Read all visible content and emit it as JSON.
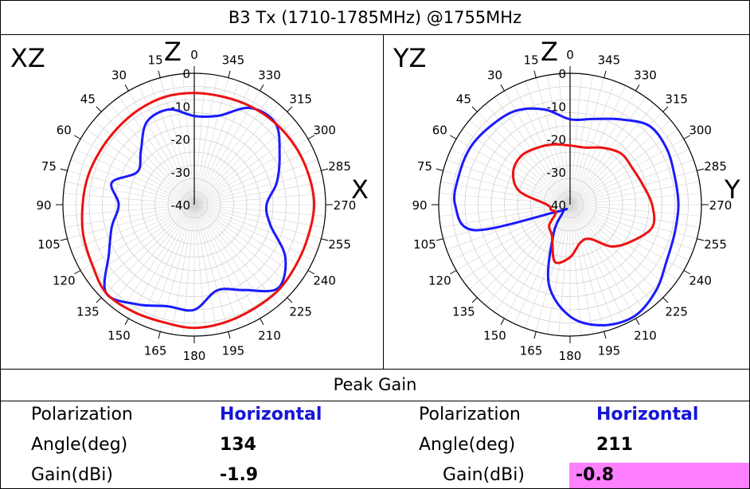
{
  "title": "B3 Tx (1710-1785MHz) @1755MHz",
  "peak_title": "Peak Gain",
  "chart_data": [
    {
      "type": "polar",
      "plane_label": "XZ",
      "top_axis": "Z",
      "side_axis": "X",
      "angle_labels": [
        "0",
        "15",
        "30",
        "45",
        "60",
        "75",
        "90",
        "105",
        "120",
        "135",
        "150",
        "165",
        "180",
        "195",
        "210",
        "225",
        "240",
        "255",
        "270",
        "285",
        "300",
        "315",
        "330",
        "345"
      ],
      "radial_labels": [
        "0",
        "-10",
        "-20",
        "-30",
        "-40"
      ],
      "rlim": [
        -40,
        0
      ],
      "series": [
        {
          "name": "Horizontal",
          "color": "#1a1aff",
          "angle": [
            0,
            15,
            30,
            45,
            60,
            75,
            90,
            105,
            120,
            135,
            150,
            165,
            180,
            195,
            210,
            225,
            240,
            255,
            270,
            285,
            300,
            315,
            330,
            345,
            360
          ],
          "gain": [
            -13,
            -10,
            -11,
            -17,
            -20,
            -14,
            -17,
            -14,
            -10,
            -2,
            -5,
            -8,
            -8,
            -13,
            -10,
            -4,
            -8,
            -16,
            -18,
            -14,
            -10,
            -5,
            -6,
            -12,
            -13
          ]
        },
        {
          "name": "",
          "color": "#ee1111",
          "angle": [
            0,
            15,
            30,
            45,
            60,
            75,
            90,
            105,
            120,
            135,
            150,
            165,
            180,
            195,
            210,
            225,
            240,
            255,
            270,
            285,
            300,
            315,
            330,
            345,
            360
          ],
          "gain": [
            -6,
            -6,
            -6.5,
            -7,
            -7,
            -6.5,
            -6,
            -5,
            -4,
            -2,
            -2.5,
            -3,
            -2.5,
            -3,
            -3.5,
            -3.5,
            -4,
            -4,
            -3.5,
            -4,
            -4.5,
            -5,
            -5.5,
            -6,
            -6
          ]
        }
      ]
    },
    {
      "type": "polar",
      "plane_label": "YZ",
      "top_axis": "Z",
      "side_axis": "Y",
      "angle_labels": [
        "0",
        "15",
        "30",
        "45",
        "60",
        "75",
        "90",
        "105",
        "120",
        "135",
        "150",
        "165",
        "180",
        "195",
        "210",
        "225",
        "240",
        "255",
        "270",
        "285",
        "300",
        "315",
        "330",
        "345"
      ],
      "radial_labels": [
        "0",
        "-10",
        "-20",
        "-30",
        "-40"
      ],
      "rlim": [
        -40,
        0
      ],
      "series": [
        {
          "name": "Horizontal",
          "color": "#1a1aff",
          "angle": [
            0,
            15,
            30,
            45,
            60,
            75,
            90,
            105,
            120,
            135,
            150,
            165,
            180,
            195,
            210,
            225,
            240,
            255,
            270,
            285,
            300,
            315,
            330,
            345,
            360
          ],
          "gain": [
            -14,
            -10,
            -7,
            -6,
            -5,
            -5,
            -5,
            -10,
            -36,
            -37,
            -30,
            -15,
            -6,
            -2,
            -0.8,
            -3,
            -6,
            -7,
            -7,
            -7,
            -6,
            -6,
            -10,
            -13,
            -14
          ]
        },
        {
          "name": "",
          "color": "#ee1111",
          "angle": [
            0,
            15,
            30,
            45,
            60,
            75,
            90,
            105,
            120,
            135,
            150,
            165,
            180,
            195,
            210,
            225,
            240,
            255,
            270,
            285,
            300,
            315,
            330,
            345,
            360
          ],
          "gain": [
            -22,
            -21,
            -20,
            -19,
            -20,
            -24,
            -33,
            -34,
            -35,
            -31,
            -29,
            -22,
            -24,
            -28,
            -28,
            -22,
            -18,
            -14,
            -15,
            -17,
            -18,
            -18,
            -20,
            -22,
            -22
          ]
        }
      ]
    }
  ],
  "peak": [
    {
      "polarization_label": "Polarization",
      "polarization": "Horizontal",
      "angle_label": "Angle(deg)",
      "angle": "134",
      "gain_label": "Gain(dBi)",
      "gain": "-1.9"
    },
    {
      "polarization_label": "Polarization",
      "polarization": "Horizontal",
      "angle_label": "Angle(deg)",
      "angle": "211",
      "gain_label": "Gain(dBi)",
      "gain": "-0.8",
      "highlight_color": "#ff80ff"
    }
  ]
}
